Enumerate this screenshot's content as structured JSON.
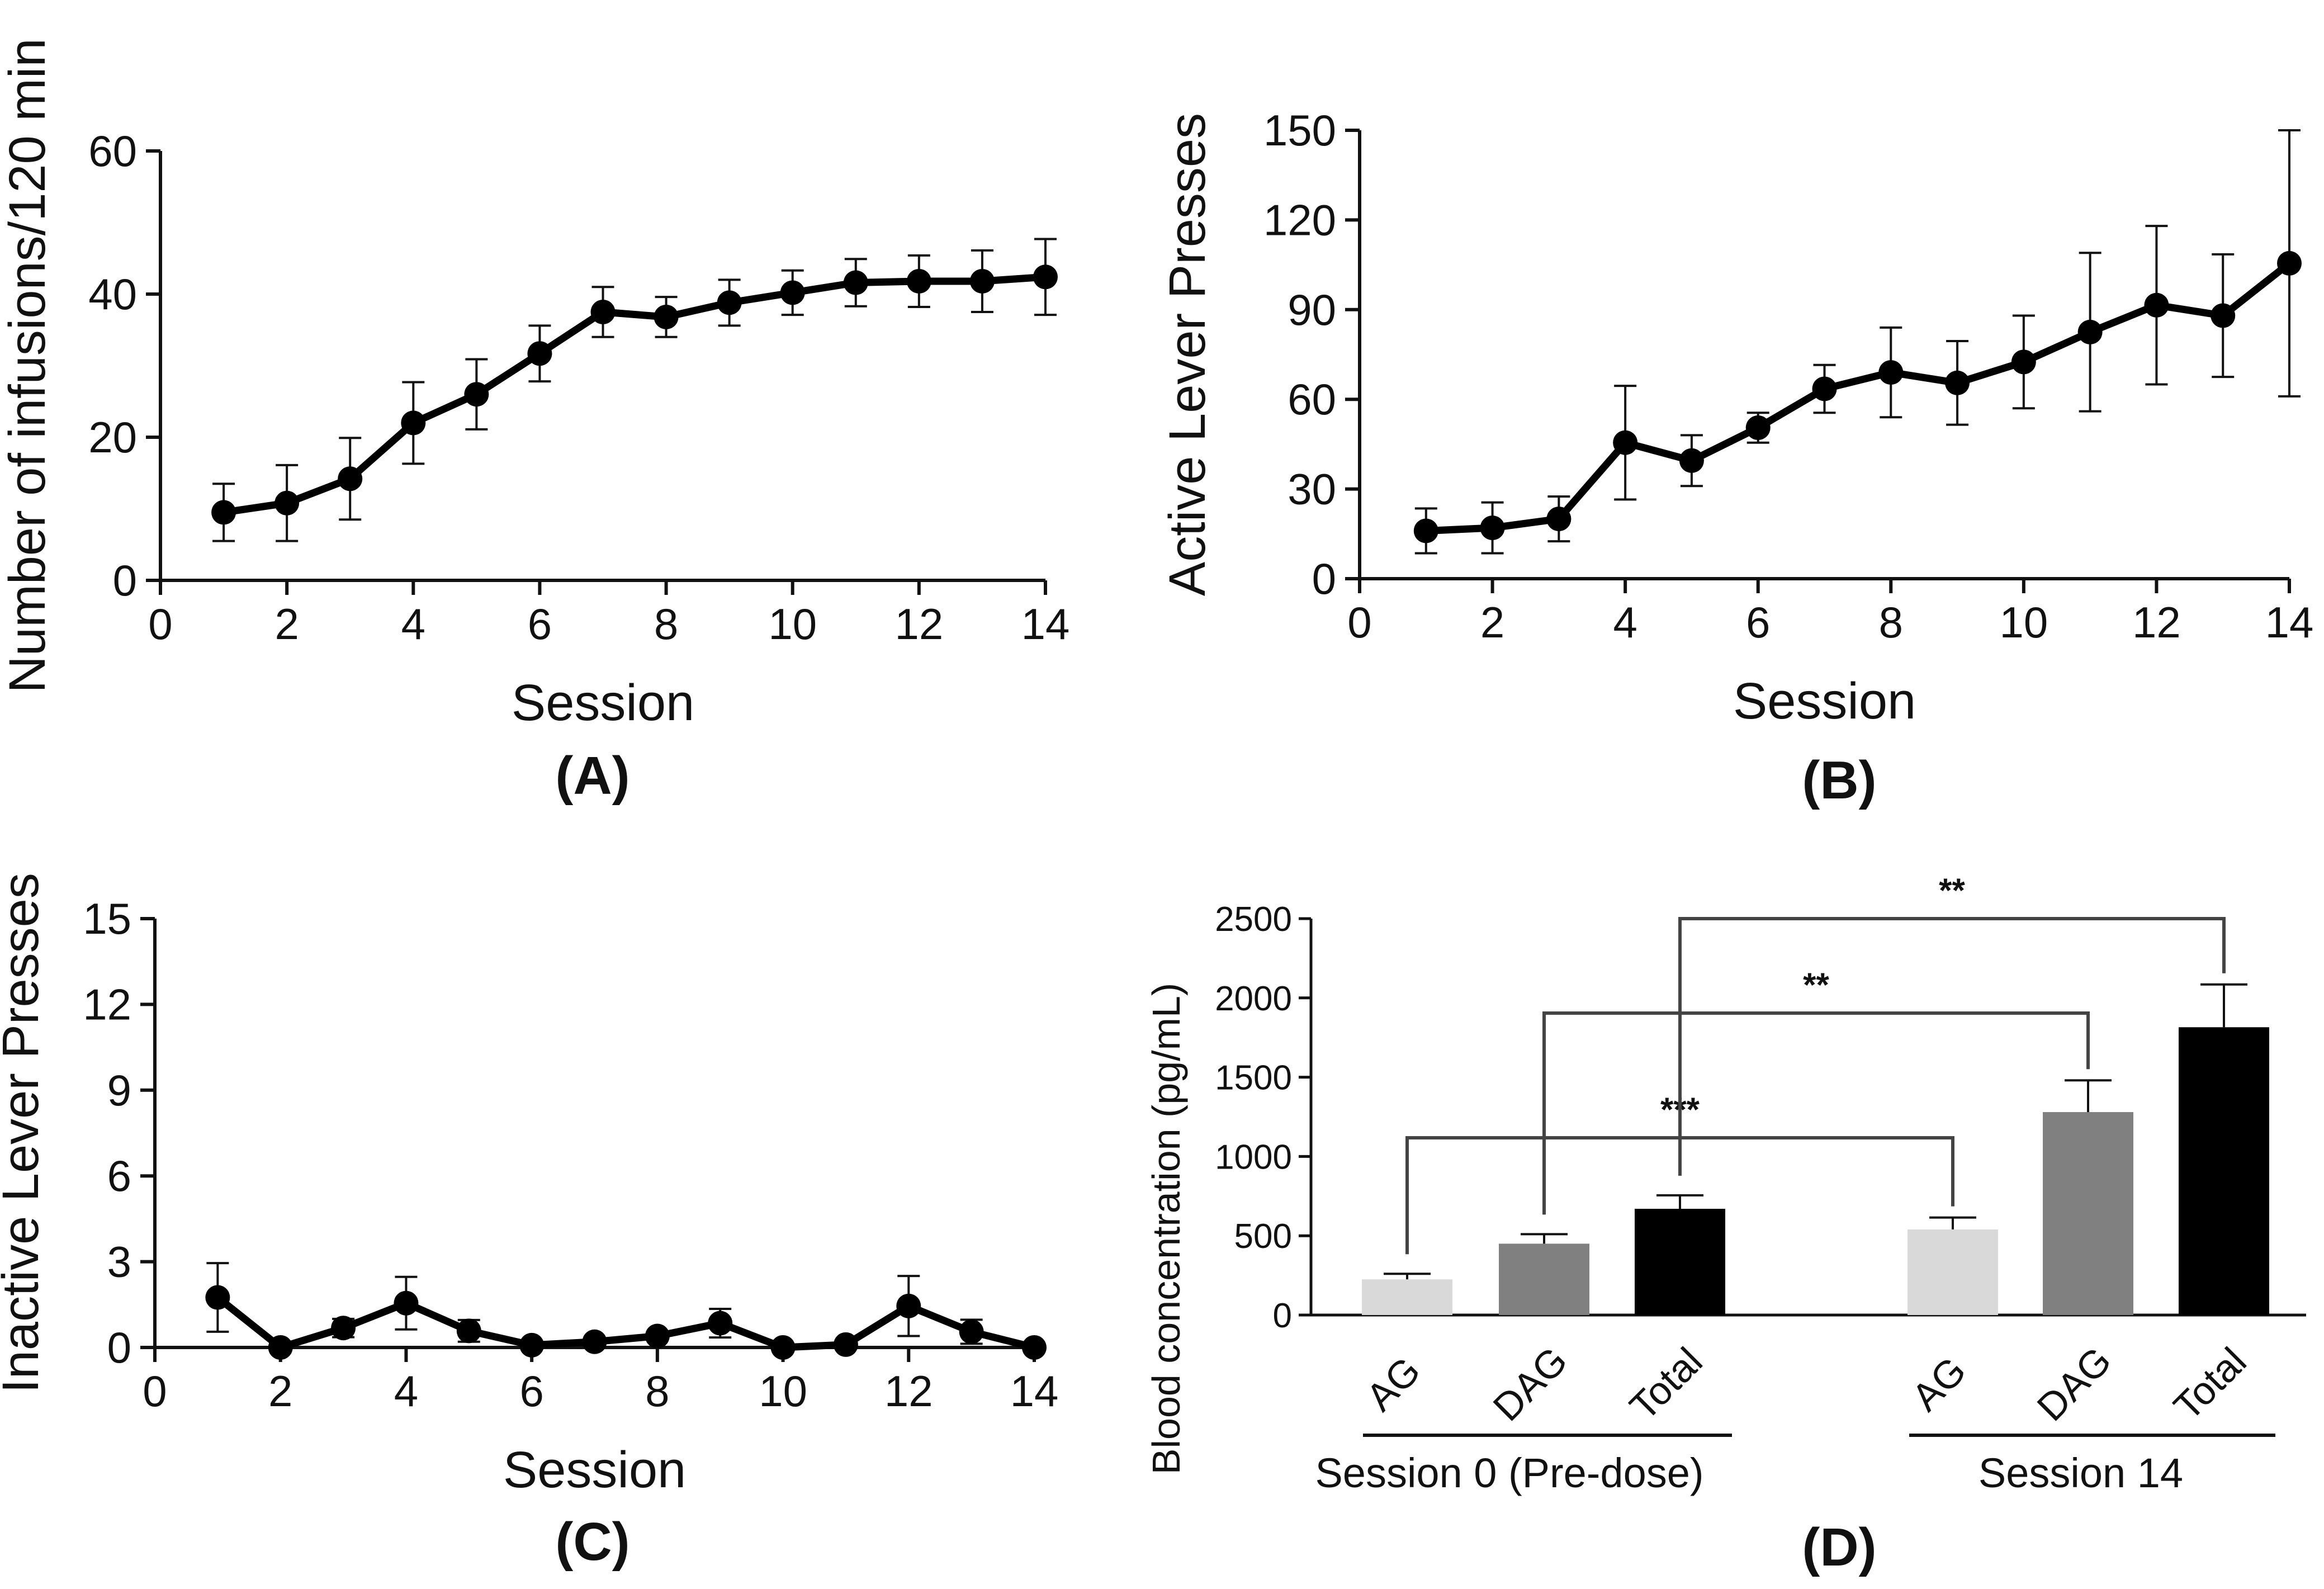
{
  "chart_data": [
    {
      "panel": "(A)",
      "type": "line",
      "xlabel": "Session",
      "ylabel": "Number of infusions/120 min",
      "xlim": [
        0,
        14
      ],
      "ylim": [
        0,
        60
      ],
      "xticks": [
        0,
        2,
        4,
        6,
        8,
        10,
        12,
        14
      ],
      "yticks": [
        0,
        20,
        40,
        60
      ],
      "x": [
        1,
        2,
        3,
        4,
        5,
        6,
        7,
        8,
        9,
        10,
        11,
        12,
        13,
        14
      ],
      "y": [
        9.5,
        10.8,
        14.2,
        22,
        26,
        31.7,
        37.5,
        36.8,
        38.8,
        40.2,
        41.6,
        41.8,
        41.8,
        42.4
      ],
      "err": [
        4,
        5.3,
        5.7,
        5.7,
        4.9,
        3.9,
        3.5,
        2.8,
        3.2,
        3.1,
        3.3,
        3.6,
        4.3,
        5.3
      ]
    },
    {
      "panel": "(B)",
      "type": "line",
      "xlabel": "Session",
      "ylabel": "Active Lever Presses",
      "xlim": [
        0,
        14
      ],
      "ylim": [
        0,
        150
      ],
      "xticks": [
        0,
        2,
        4,
        6,
        8,
        10,
        12,
        14
      ],
      "yticks": [
        0,
        30,
        60,
        90,
        120,
        150
      ],
      "x": [
        1,
        2,
        3,
        4,
        5,
        6,
        7,
        8,
        9,
        10,
        11,
        12,
        13,
        14
      ],
      "y": [
        16,
        17,
        20,
        45.5,
        39.5,
        50.5,
        63.5,
        69,
        65.5,
        72.5,
        82.5,
        91.5,
        88,
        105.5
      ],
      "err": [
        7.5,
        8.5,
        7.5,
        19,
        8.5,
        5,
        8,
        15,
        14,
        15.5,
        26.5,
        26.5,
        20.5,
        44.5
      ]
    },
    {
      "panel": "(C)",
      "type": "line",
      "xlabel": "Session",
      "ylabel": "Inactive Lever Presses",
      "xlim": [
        0,
        14
      ],
      "ylim": [
        0,
        15
      ],
      "xticks": [
        0,
        2,
        4,
        6,
        8,
        10,
        12,
        14
      ],
      "yticks": [
        0,
        3,
        6,
        9,
        12,
        15
      ],
      "x": [
        1,
        2,
        3,
        4,
        5,
        6,
        7,
        8,
        9,
        10,
        11,
        12,
        13,
        14
      ],
      "y": [
        1.75,
        0,
        0.68,
        1.55,
        0.58,
        0.08,
        0.2,
        0.4,
        0.85,
        0,
        0.1,
        1.45,
        0.55,
        0
      ],
      "err": [
        1.2,
        0,
        0.32,
        0.92,
        0.38,
        0,
        0,
        0,
        0.5,
        0,
        0,
        1.05,
        0.42,
        0
      ]
    },
    {
      "panel": "(D)",
      "type": "bar",
      "ylabel": "Blood concentration (pg/mL)",
      "ylim": [
        0,
        2500
      ],
      "yticks": [
        0,
        500,
        1000,
        1500,
        2000,
        2500
      ],
      "categories": [
        "AG",
        "DAG",
        "Total",
        "AG",
        "DAG",
        "Total"
      ],
      "groups": [
        "Session 0 (Pre-dose)",
        "Session 14"
      ],
      "values": [
        225,
        450,
        670,
        540,
        1280,
        1815
      ],
      "err": [
        35,
        60,
        85,
        75,
        200,
        270
      ],
      "colors": [
        "#d9d9d9",
        "#808080",
        "#000000",
        "#d9d9d9",
        "#808080",
        "#000000"
      ],
      "comparisons": [
        {
          "from": 0,
          "to": 3,
          "label": "***"
        },
        {
          "from": 1,
          "to": 4,
          "label": "**"
        },
        {
          "from": 2,
          "to": 5,
          "label": "**"
        }
      ]
    }
  ]
}
